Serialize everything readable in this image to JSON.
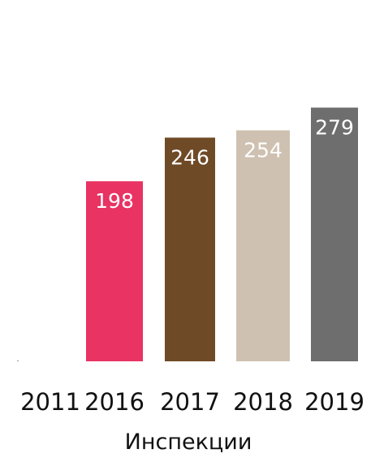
{
  "chart_data": {
    "type": "bar",
    "categories": [
      "2011",
      "2016",
      "2017",
      "2018",
      "2019"
    ],
    "values": [
      1,
      198,
      246,
      254,
      279
    ],
    "data_labels": [
      "",
      "198",
      "246",
      "254",
      "279"
    ],
    "colors": [
      "#999999",
      "#e83363",
      "#6f4a26",
      "#cfc1b1",
      "#6e6e6e"
    ],
    "title": "",
    "xlabel": "Инспекции",
    "ylabel": "",
    "ylim": [
      0,
      300
    ],
    "grid": false,
    "legend": "none"
  }
}
